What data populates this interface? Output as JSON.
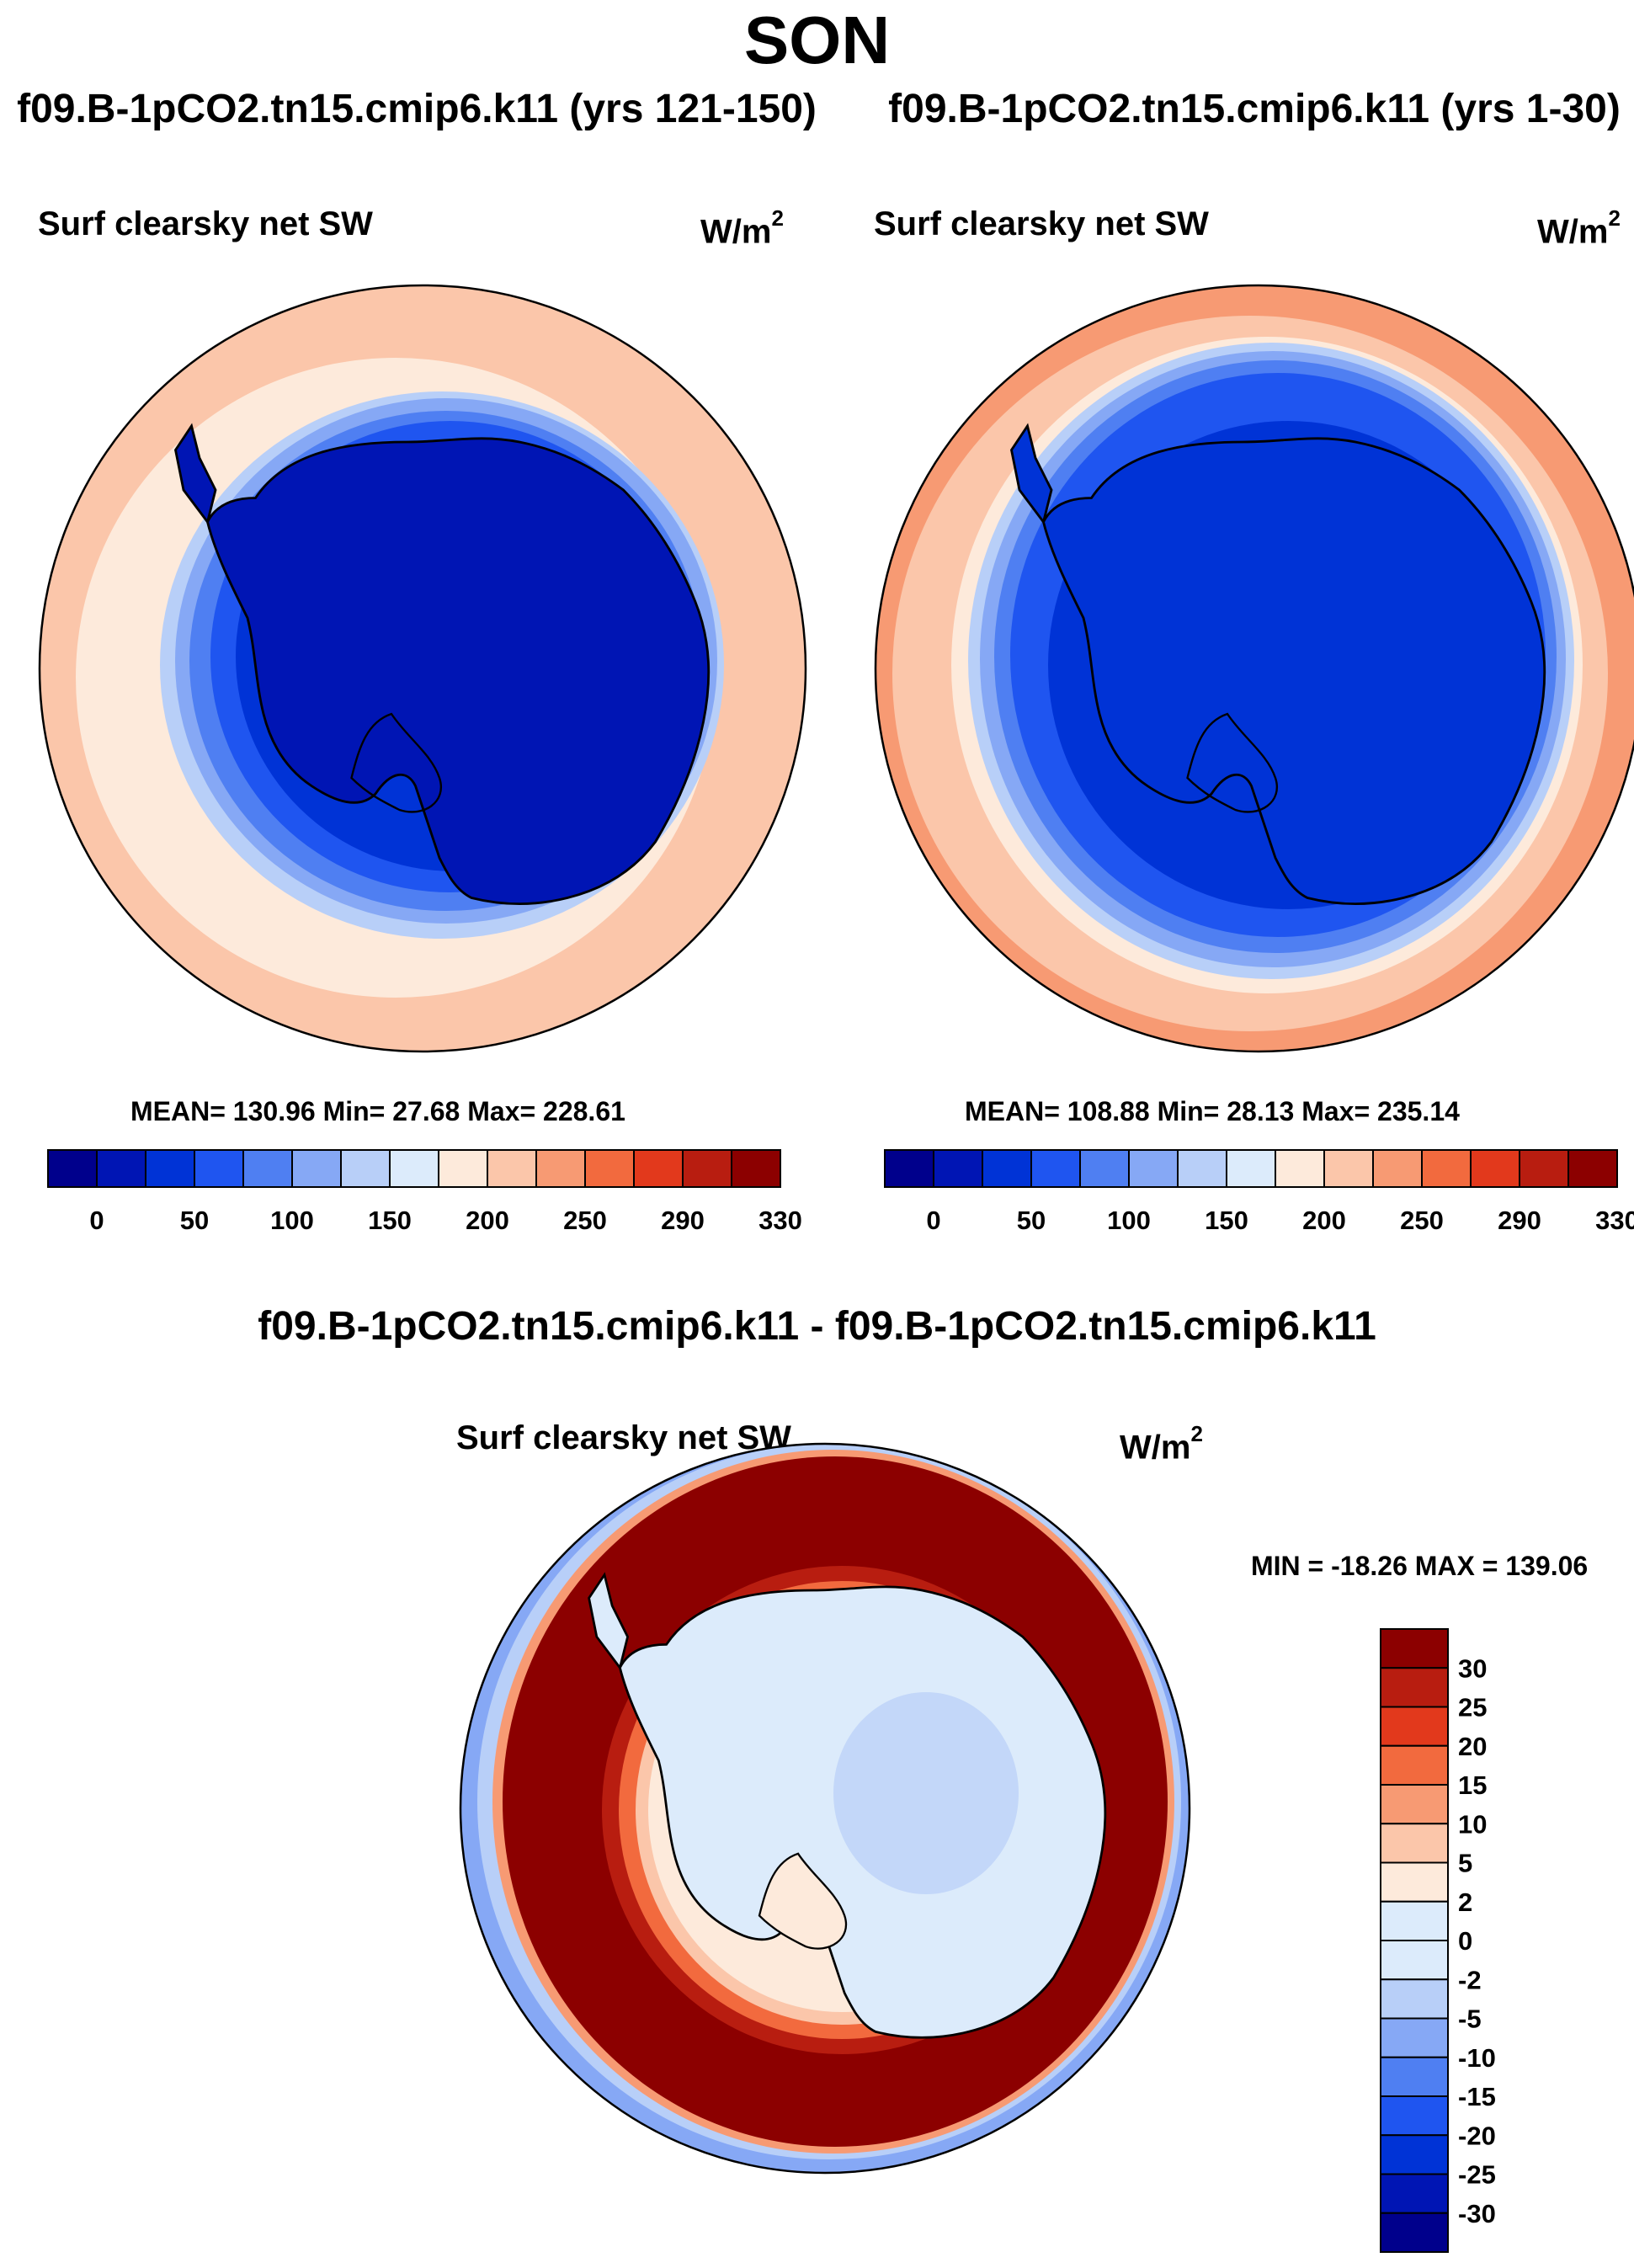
{
  "figure": {
    "season": "SON",
    "difference_title": "f09.B-1pCO2.tn15.cmip6.k11 - f09.B-1pCO2.tn15.cmip6.k11"
  },
  "panels": {
    "left": {
      "case_title": "f09.B-1pCO2.tn15.cmip6.k11 (yrs 121-150)",
      "variable": "Surf clearsky net SW",
      "units_base": "W/m",
      "units_exp": "2",
      "stats": "MEAN= 130.96  Min=  27.68  Max= 228.61"
    },
    "right": {
      "case_title": "f09.B-1pCO2.tn15.cmip6.k11 (yrs 1-30)",
      "variable": "Surf clearsky net SW",
      "units_base": "W/m",
      "units_exp": "2",
      "stats": "MEAN= 108.88  Min=  28.13  Max= 235.14"
    },
    "diff": {
      "variable": "Surf clearsky net SW",
      "units_base": "W/m",
      "units_exp": "2",
      "stats": "MIN = -18.26 MAX = 139.06"
    }
  },
  "colors": {
    "abs_scale": [
      "#00008c",
      "#0015b4",
      "#0033d6",
      "#1f55f0",
      "#4f7ff2",
      "#86a8f5",
      "#b8cff8",
      "#dcebfb",
      "#fdeadb",
      "#fbc6aa",
      "#f79a73",
      "#f26a3e",
      "#e2391c",
      "#b81d10",
      "#8c0000"
    ],
    "diff_scale": [
      "#00008c",
      "#0015b4",
      "#0033d6",
      "#1f55f0",
      "#4f7ff2",
      "#86a8f5",
      "#b8cff8",
      "#dcebfb",
      "#fdeadb",
      "#fbc6aa",
      "#f79a73",
      "#f26a3e",
      "#e2391c",
      "#b81d10",
      "#8c0000"
    ]
  },
  "chart_data": [
    {
      "type": "heatmap",
      "projection": "south polar stereographic",
      "title": "f09.B-1pCO2.tn15.cmip6.k11 (yrs 121-150)",
      "variable": "Surf clearsky net SW",
      "units": "W/m2",
      "mean": 130.96,
      "min": 27.68,
      "max": 228.61,
      "colorbar_ticks": [
        "0",
        "50",
        "100",
        "150",
        "200",
        "250",
        "290",
        "330"
      ],
      "colorbar_levels": 15
    },
    {
      "type": "heatmap",
      "projection": "south polar stereographic",
      "title": "f09.B-1pCO2.tn15.cmip6.k11 (yrs 1-30)",
      "variable": "Surf clearsky net SW",
      "units": "W/m2",
      "mean": 108.88,
      "min": 28.13,
      "max": 235.14,
      "colorbar_ticks": [
        "0",
        "50",
        "100",
        "150",
        "200",
        "250",
        "290",
        "330"
      ],
      "colorbar_levels": 15
    },
    {
      "type": "heatmap",
      "projection": "south polar stereographic",
      "title": "f09.B-1pCO2.tn15.cmip6.k11 - f09.B-1pCO2.tn15.cmip6.k11",
      "variable": "Surf clearsky net SW",
      "units": "W/m2",
      "min": -18.26,
      "max": 139.06,
      "colorbar_ticks": [
        "30",
        "25",
        "20",
        "15",
        "10",
        "5",
        "2",
        "0",
        "-2",
        "-5",
        "-10",
        "-15",
        "-20",
        "-25",
        "-30"
      ],
      "colorbar_levels": 16
    }
  ]
}
